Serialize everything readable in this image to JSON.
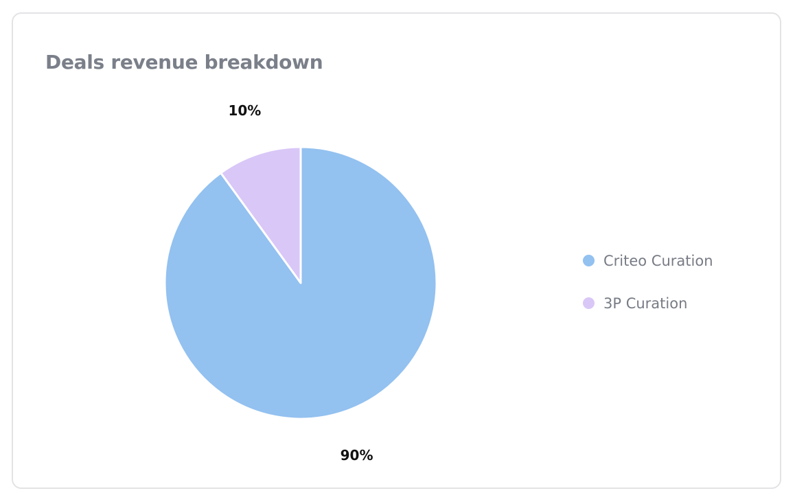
{
  "card": {
    "title": "Deals revenue breakdown"
  },
  "chart_data": {
    "type": "pie",
    "title": "Deals revenue breakdown",
    "start_angle": "12 o'clock",
    "direction": "clockwise",
    "legend_placement": "right",
    "slices": [
      {
        "name": "Criteo Curation",
        "value": 90,
        "label": "90%",
        "color": "#93c1f0"
      },
      {
        "name": "3P Curation",
        "value": 10,
        "label": "10%",
        "color": "#d9c7f7"
      }
    ]
  }
}
